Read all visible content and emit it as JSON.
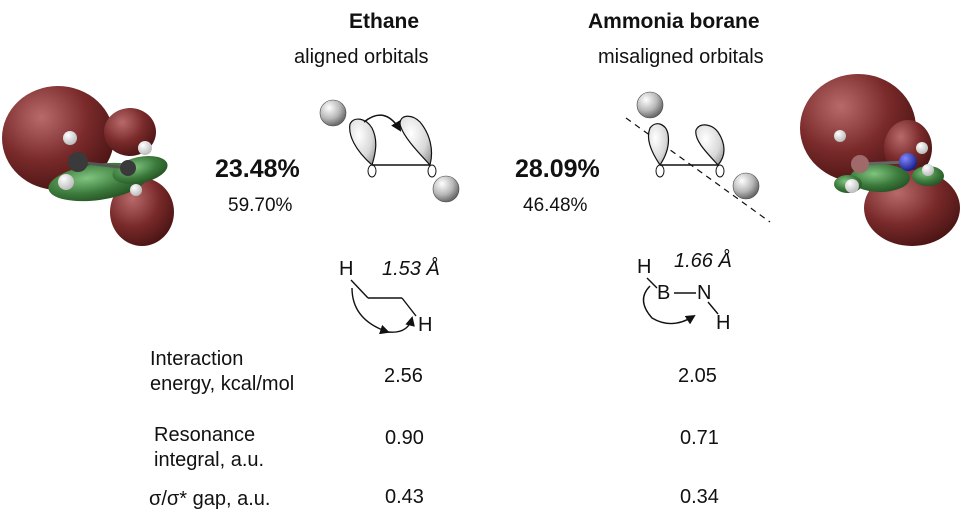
{
  "ethane": {
    "title": "Ethane",
    "subtitle": "aligned orbitals",
    "pct_main": "23.48%",
    "pct_secondary": "59.70%",
    "bond_length": "1.53 Å",
    "atom_h1": "H",
    "atom_h2": "H"
  },
  "borane": {
    "title": "Ammonia borane",
    "subtitle": "misaligned orbitals",
    "pct_main": "28.09%",
    "pct_secondary": "46.48%",
    "bond_length": "1.66 Å",
    "atom_h1": "H",
    "atom_b": "B",
    "atom_n": "N",
    "atom_h2": "H"
  },
  "table": {
    "rows": [
      {
        "label_line1": "Interaction",
        "label_line2": "energy, kcal/mol",
        "ethane": "2.56",
        "borane": "2.05"
      },
      {
        "label_line1": "Resonance",
        "label_line2": "integral, a.u.",
        "ethane": "0.90",
        "borane": "0.71"
      },
      {
        "label_line1": "σ/σ* gap, a.u.",
        "label_line2": "",
        "ethane": "0.43",
        "borane": "0.34"
      }
    ]
  },
  "colors": {
    "lobe_red": "#7a2a2a",
    "lobe_green": "#3c7a3c",
    "nitrogen_blue": "#2a33b8"
  }
}
